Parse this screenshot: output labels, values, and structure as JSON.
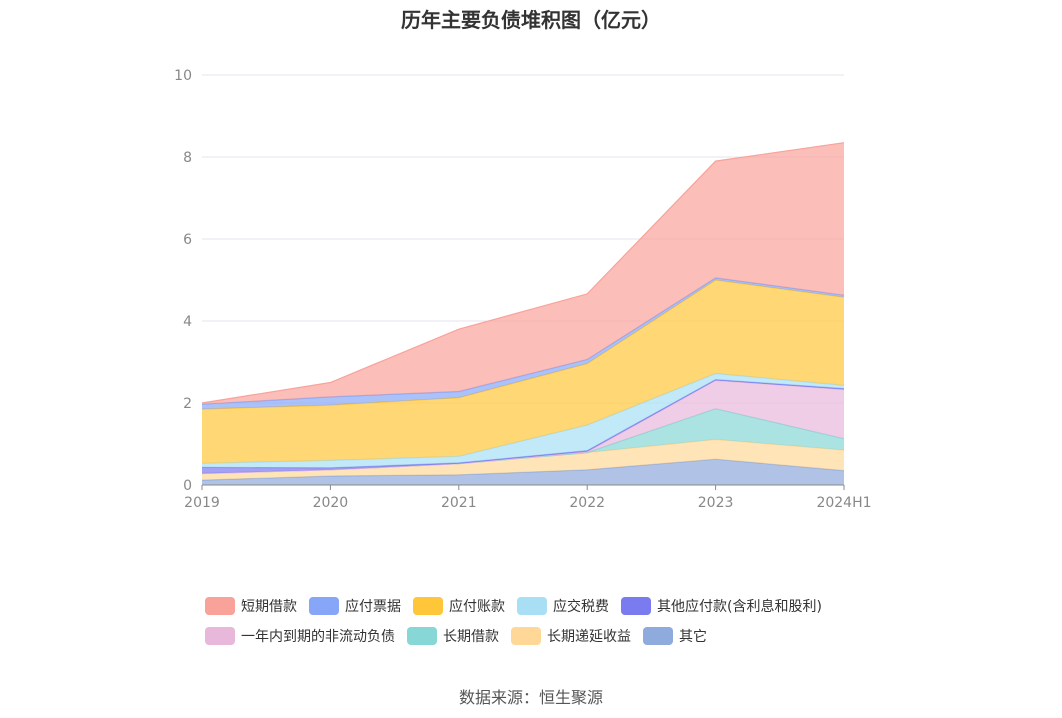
{
  "chart_data": {
    "type": "area",
    "stacked": true,
    "title": "历年主要负债堆积图（亿元）",
    "source": "数据来源：恒生聚源",
    "categories": [
      "2019",
      "2020",
      "2021",
      "2022",
      "2023",
      "2024H1"
    ],
    "ylim": [
      0,
      10
    ],
    "yticks": [
      "0",
      "2",
      "4",
      "6",
      "8",
      "10"
    ],
    "grid": true,
    "legend_position": "bottom",
    "series": [
      {
        "name": "其它",
        "color": "#8FAADC",
        "values": [
          0.12,
          0.22,
          0.25,
          0.37,
          0.63,
          0.35
        ]
      },
      {
        "name": "长期递延收益",
        "color": "#FFD898",
        "values": [
          0.16,
          0.15,
          0.27,
          0.42,
          0.48,
          0.5
        ]
      },
      {
        "name": "长期借款",
        "color": "#86D7D5",
        "values": [
          0.0,
          0.0,
          0.0,
          0.0,
          0.75,
          0.28
        ]
      },
      {
        "name": "一年内到期的非流动负债",
        "color": "#E8B8DB",
        "values": [
          0.0,
          0.0,
          0.0,
          0.02,
          0.69,
          1.2
        ]
      },
      {
        "name": "其他应付款(含利息和股利)",
        "color": "#7B7BF0",
        "values": [
          0.15,
          0.05,
          0.02,
          0.03,
          0.02,
          0.02
        ]
      },
      {
        "name": "应交税费",
        "color": "#A8DFF5",
        "values": [
          0.1,
          0.18,
          0.16,
          0.62,
          0.15,
          0.08
        ]
      },
      {
        "name": "应付账款",
        "color": "#FFC63A",
        "values": [
          1.32,
          1.35,
          1.43,
          1.5,
          2.28,
          2.15
        ]
      },
      {
        "name": "应付票据",
        "color": "#88A6F8",
        "values": [
          0.12,
          0.2,
          0.15,
          0.1,
          0.05,
          0.05
        ]
      },
      {
        "name": "短期借款",
        "color": "#F9A29A",
        "values": [
          0.03,
          0.35,
          1.52,
          1.6,
          2.85,
          3.72
        ]
      }
    ]
  },
  "legend_rows": [
    [
      {
        "label": "短期借款",
        "color": "#F9A29A"
      },
      {
        "label": "应付票据",
        "color": "#88A6F8"
      },
      {
        "label": "应付账款",
        "color": "#FFC63A"
      },
      {
        "label": "应交税费",
        "color": "#A8DFF5"
      },
      {
        "label": "其他应付款(含利息和股利)",
        "color": "#7B7BF0"
      }
    ],
    [
      {
        "label": "一年内到期的非流动负债",
        "color": "#E8B8DB"
      },
      {
        "label": "长期借款",
        "color": "#86D7D5"
      },
      {
        "label": "长期递延收益",
        "color": "#FFD898"
      },
      {
        "label": "其它",
        "color": "#8FAADC"
      }
    ]
  ]
}
